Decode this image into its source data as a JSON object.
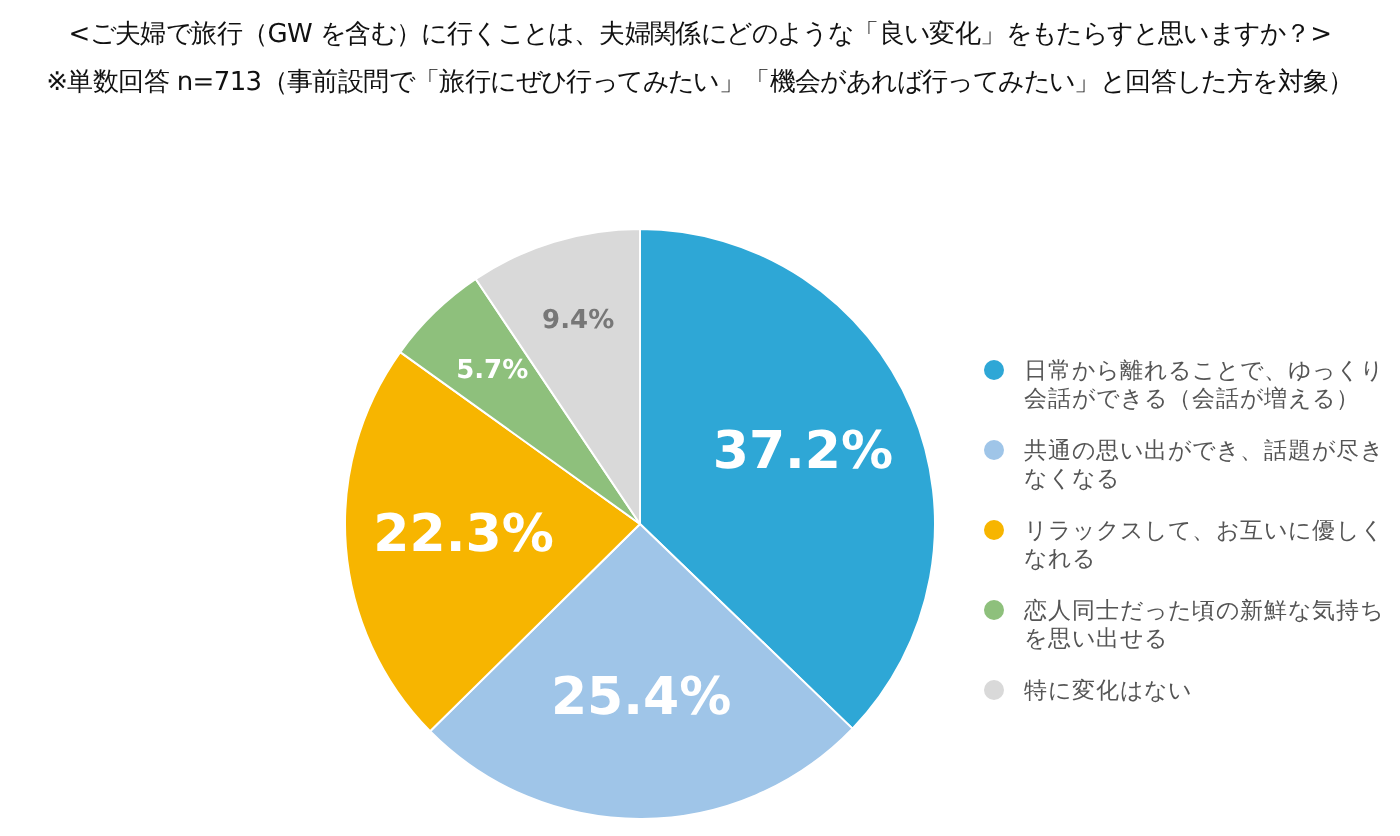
{
  "chart_data": {
    "type": "pie",
    "title": "<ご夫婦で旅行（GW を含む）に行くことは、夫婦関係にどのような「良い変化」をもたらすと思いますか？>",
    "subtitle": "※単数回答 n=713（事前設問で「旅行にぜひ行ってみたい」「機会があれば行ってみたい」と回答した方を対象）",
    "categories": [
      "日常から離れることで、ゆっくり会話ができる（会話が増える）",
      "共通の思い出ができ、話題が尽きなくなる",
      "リラックスして、お互いに優しくなれる",
      "恋人同士だった頃の新鮮な気持ちを思い出せる",
      "特に変化はない"
    ],
    "values": [
      37.2,
      25.4,
      22.3,
      5.7,
      9.4
    ],
    "colors": [
      "#2ea7d6",
      "#9fc5e8",
      "#f7b500",
      "#8ec07c",
      "#d9d9d9"
    ],
    "value_labels": [
      "37.2%",
      "25.4%",
      "22.3%",
      "5.7%",
      "9.4%"
    ],
    "legend": "right"
  }
}
